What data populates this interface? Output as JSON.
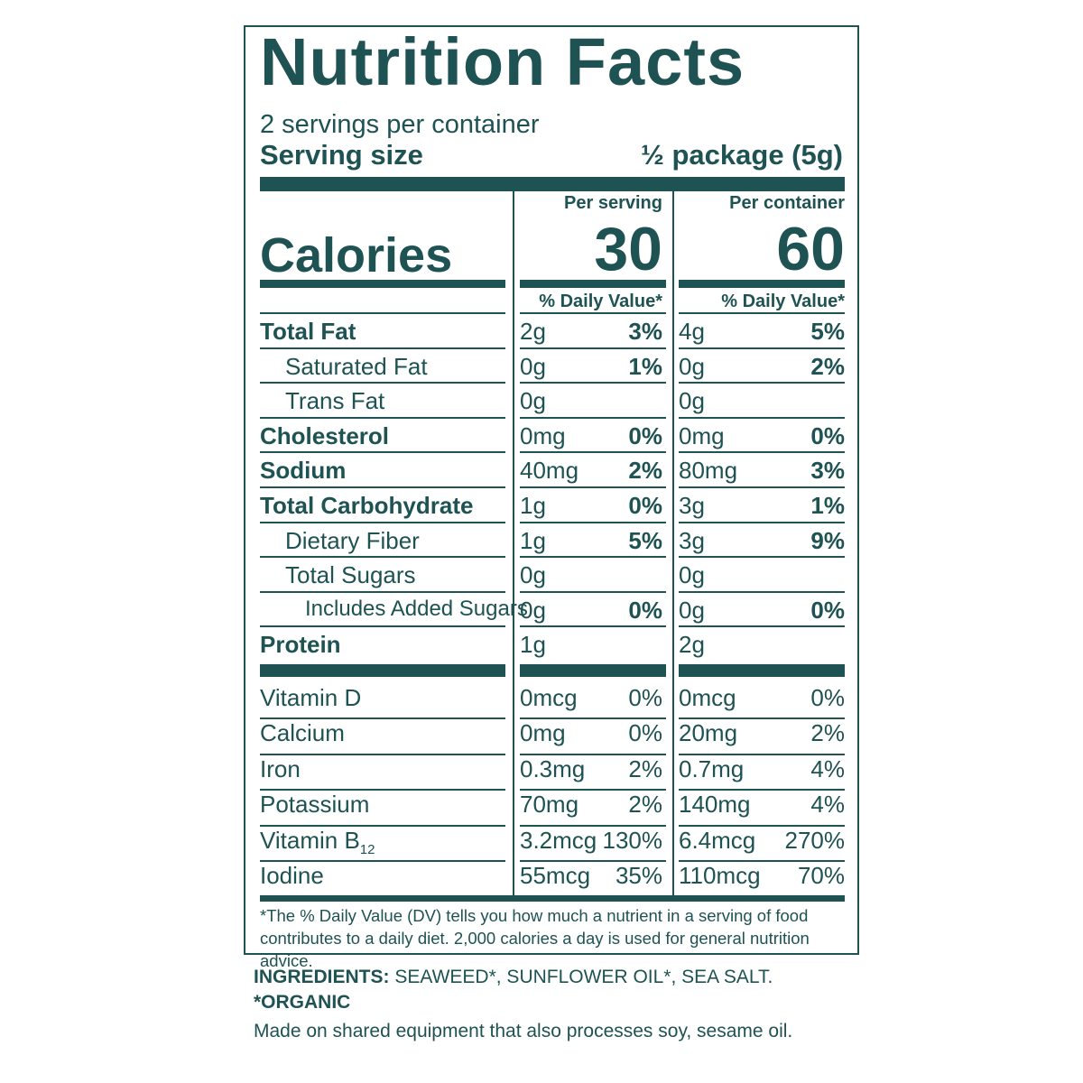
{
  "label": {
    "title": "Nutrition Facts",
    "servings_per_container": "2 servings per container",
    "serving_size_label": "Serving size",
    "serving_size_value": "½ package (5g)",
    "calories_label": "Calories",
    "per_serving_label": "Per serving",
    "per_container_label": "Per container",
    "calories_per_serving": "30",
    "calories_per_container": "60",
    "daily_value_label": "% Daily Value*",
    "nutrients": [
      {
        "name": "Total Fat",
        "bold": true,
        "indent": 0,
        "s_amt": "2g",
        "s_dv": "3%",
        "c_amt": "4g",
        "c_dv": "5%"
      },
      {
        "name": "Saturated Fat",
        "bold": false,
        "indent": 1,
        "s_amt": "0g",
        "s_dv": "1%",
        "c_amt": "0g",
        "c_dv": "2%"
      },
      {
        "name": "Trans Fat",
        "bold": false,
        "indent": 1,
        "s_amt": "0g",
        "s_dv": "",
        "c_amt": "0g",
        "c_dv": ""
      },
      {
        "name": "Cholesterol",
        "bold": true,
        "indent": 0,
        "s_amt": "0mg",
        "s_dv": "0%",
        "c_amt": "0mg",
        "c_dv": "0%"
      },
      {
        "name": "Sodium",
        "bold": true,
        "indent": 0,
        "s_amt": "40mg",
        "s_dv": "2%",
        "c_amt": "80mg",
        "c_dv": "3%"
      },
      {
        "name": "Total Carbohydrate",
        "bold": true,
        "indent": 0,
        "s_amt": "1g",
        "s_dv": "0%",
        "c_amt": "3g",
        "c_dv": "1%"
      },
      {
        "name": "Dietary Fiber",
        "bold": false,
        "indent": 1,
        "s_amt": "1g",
        "s_dv": "5%",
        "c_amt": "3g",
        "c_dv": "9%"
      },
      {
        "name": "Total Sugars",
        "bold": false,
        "indent": 1,
        "s_amt": "0g",
        "s_dv": "",
        "c_amt": "0g",
        "c_dv": ""
      },
      {
        "name": "Includes Added Sugars",
        "bold": false,
        "indent": 2,
        "s_amt": "0g",
        "s_dv": "0%",
        "c_amt": "0g",
        "c_dv": "0%"
      },
      {
        "name": "Protein",
        "bold": true,
        "indent": 0,
        "s_amt": "1g",
        "s_dv": "",
        "c_amt": "2g",
        "c_dv": ""
      }
    ],
    "vitamins": [
      {
        "name": "Vitamin D",
        "sub": "",
        "s_amt": "0mcg",
        "s_dv": "0%",
        "c_amt": "0mcg",
        "c_dv": "0%"
      },
      {
        "name": "Calcium",
        "sub": "",
        "s_amt": "0mg",
        "s_dv": "0%",
        "c_amt": "20mg",
        "c_dv": "2%"
      },
      {
        "name": "Iron",
        "sub": "",
        "s_amt": "0.3mg",
        "s_dv": "2%",
        "c_amt": "0.7mg",
        "c_dv": "4%"
      },
      {
        "name": "Potassium",
        "sub": "",
        "s_amt": "70mg",
        "s_dv": "2%",
        "c_amt": "140mg",
        "c_dv": "4%"
      },
      {
        "name": "Vitamin B",
        "sub": "12",
        "s_amt": "3.2mcg",
        "s_dv": "130%",
        "c_amt": "6.4mcg",
        "c_dv": "270%"
      },
      {
        "name": "Iodine",
        "sub": "",
        "s_amt": "55mcg",
        "s_dv": "35%",
        "c_amt": "110mcg",
        "c_dv": "70%"
      }
    ],
    "footnote": "*The % Daily Value (DV) tells you how much a nutrient in a serving of food contributes to a daily diet. 2,000 calories a day is used for general nutrition advice."
  },
  "ingredients": {
    "label": "INGREDIENTS:",
    "text": " SEAWEED*, SUNFLOWER OIL*, SEA SALT.",
    "organic_note": "*ORGANIC",
    "allergen_note": "Made on shared equipment that also processes soy, sesame oil."
  },
  "colors": {
    "ink": "#1e5253",
    "background": "#ffffff"
  }
}
